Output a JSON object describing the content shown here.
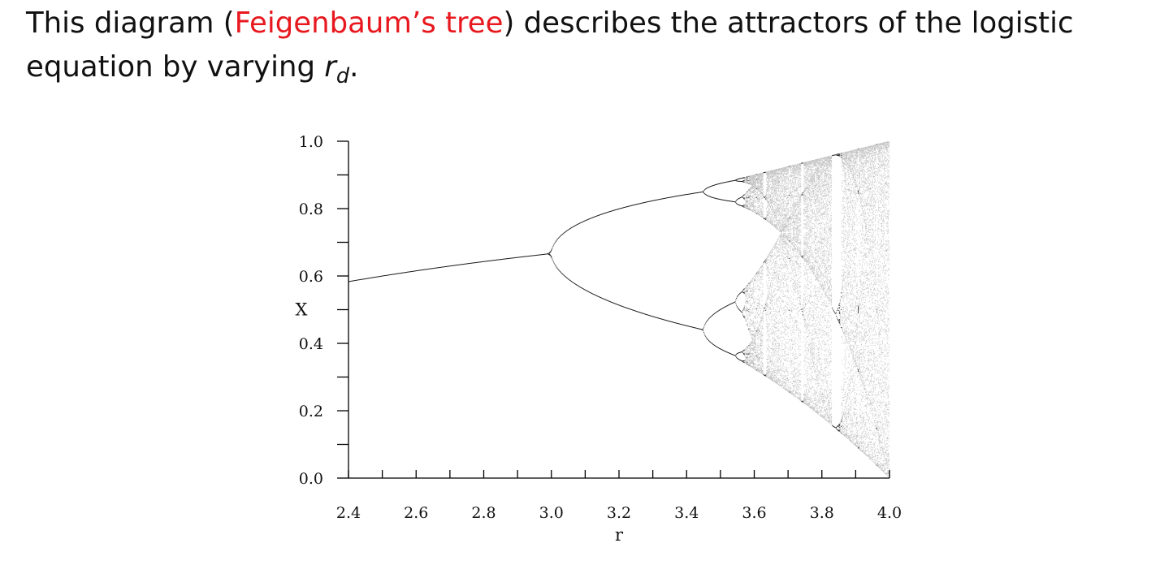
{
  "intro": {
    "before_link": "This diagram (",
    "link_text": "Feigenbaum’s tree",
    "after_link": ") describes the attractors of the logistic equation by varying ",
    "variable": "r",
    "variable_subscript": "d",
    "ending": ".",
    "highlight_color": "#e8181f"
  },
  "chart_data": {
    "type": "scatter",
    "title": "",
    "xlabel": "r",
    "ylabel": "x",
    "xlim": [
      2.4,
      4.0
    ],
    "ylim": [
      0.0,
      1.0
    ],
    "x_ticks": [
      "2.4",
      "2.6",
      "2.8",
      "3.0",
      "3.2",
      "3.4",
      "3.6",
      "3.8",
      "4.0"
    ],
    "y_ticks": [
      "0.0",
      "0.2",
      "0.4",
      "0.6",
      "0.8",
      "1.0"
    ],
    "x_minor_step": 0.1,
    "y_minor_step": 0.1,
    "grid": false,
    "legend": "none",
    "series": [
      {
        "values_rule": "attractor of x(n+1) = r·x(n)·(1 − x(n)), iterated over r in [2.4, 4.0]",
        "points_sample": [
          {
            "x": 2.4,
            "y": [
              0.583
            ]
          },
          {
            "x": 2.8,
            "y": [
              0.643
            ]
          },
          {
            "x": 3.0,
            "y": [
              0.667
            ]
          },
          {
            "x": 3.2,
            "y": [
              0.513,
              0.799
            ]
          },
          {
            "x": 3.4,
            "y": [
              0.452,
              0.842
            ]
          },
          {
            "x": 3.5,
            "y": [
              0.383,
              0.501,
              0.827,
              0.875
            ]
          },
          {
            "x": 3.83,
            "y": [
              0.156,
              0.505,
              0.957
            ]
          },
          {
            "x": 4.0,
            "y_range": [
              0.0,
              1.0
            ]
          }
        ]
      }
    ]
  }
}
